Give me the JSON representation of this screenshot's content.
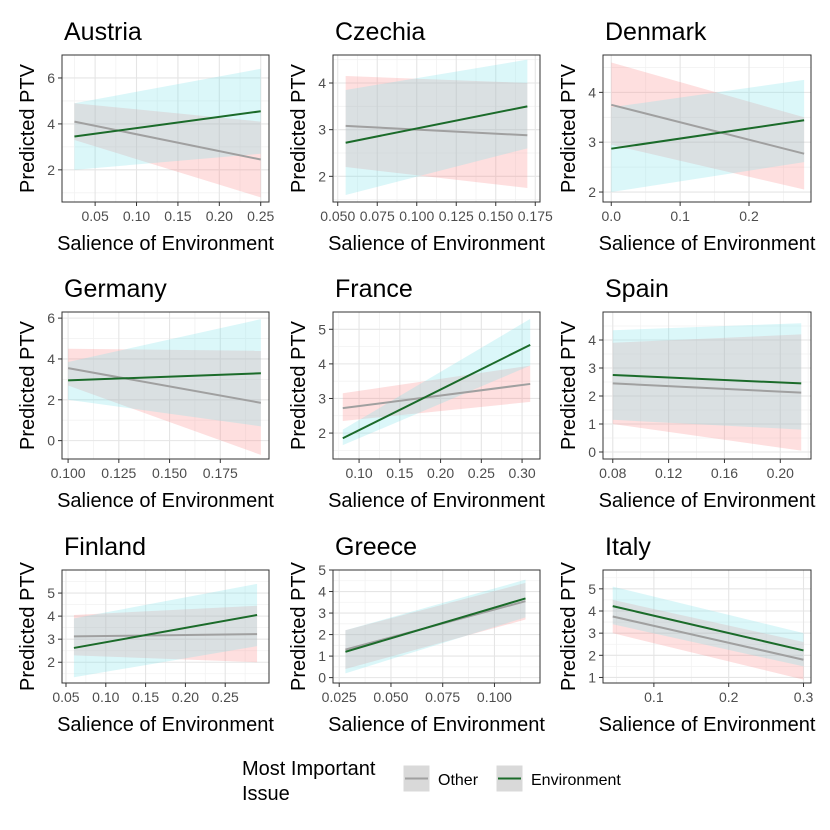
{
  "legend": {
    "title_lines": [
      "Most Important",
      "Issue"
    ],
    "items": [
      {
        "label": "Other",
        "line_color": "#a0a0a0",
        "fill_color": "#c8c8c8"
      },
      {
        "label": "Environment",
        "line_color": "#1b6b2a",
        "fill_color": "#bfd9c4"
      }
    ]
  },
  "colors": {
    "other_line": "#a0a0a0",
    "environment_line": "#1b6b2a",
    "other_ribbon": "#fb8b8b",
    "environment_ribbon": "#7fe3e8",
    "panel_border": "#333333",
    "grid_major": "#e5e5e5",
    "grid_minor": "#f2f2f2"
  },
  "chart_data": [
    {
      "type": "line",
      "title": "Austria",
      "xlabel": "Salience of Environment",
      "ylabel": "Predicted PTV",
      "xlim": [
        0.01,
        0.26
      ],
      "ylim": [
        0.6,
        7.0
      ],
      "xticks": [
        0.05,
        0.1,
        0.15,
        0.2,
        0.25
      ],
      "xtick_labels": [
        "0.05",
        "0.10",
        "0.15",
        "0.20",
        "0.25"
      ],
      "yticks": [
        2,
        4,
        6
      ],
      "ytick_labels": [
        "2",
        "4",
        "6"
      ],
      "series": [
        {
          "name": "Other",
          "x": [
            0.025,
            0.25
          ],
          "y": [
            4.1,
            2.45
          ],
          "lower": [
            3.3,
            0.8
          ],
          "upper": [
            4.9,
            4.1
          ]
        },
        {
          "name": "Environment",
          "x": [
            0.025,
            0.25
          ],
          "y": [
            3.45,
            4.55
          ],
          "lower": [
            2.0,
            2.7
          ],
          "upper": [
            4.9,
            6.4
          ]
        }
      ]
    },
    {
      "type": "line",
      "title": "Czechia",
      "xlabel": "Salience of Environment",
      "ylabel": "Predicted PTV",
      "xlim": [
        0.047,
        0.178
      ],
      "ylim": [
        1.45,
        4.6
      ],
      "xticks": [
        0.05,
        0.075,
        0.1,
        0.125,
        0.15,
        0.175
      ],
      "xtick_labels": [
        "0.050",
        "0.075",
        "0.100",
        "0.125",
        "0.150",
        "0.175"
      ],
      "yticks": [
        2,
        3,
        4
      ],
      "ytick_labels": [
        "2",
        "3",
        "4"
      ],
      "series": [
        {
          "name": "Other",
          "x": [
            0.055,
            0.17
          ],
          "y": [
            3.08,
            2.88
          ],
          "lower": [
            2.2,
            1.75
          ],
          "upper": [
            4.15,
            4.0
          ]
        },
        {
          "name": "Environment",
          "x": [
            0.055,
            0.17
          ],
          "y": [
            2.72,
            3.5
          ],
          "lower": [
            1.6,
            2.6
          ],
          "upper": [
            3.85,
            4.5
          ]
        }
      ]
    },
    {
      "type": "line",
      "title": "Denmark",
      "xlabel": "Salience of Environment",
      "ylabel": "Predicted PTV",
      "xlim": [
        -0.012,
        0.29
      ],
      "ylim": [
        1.8,
        4.75
      ],
      "xticks": [
        0.0,
        0.1,
        0.2
      ],
      "xtick_labels": [
        "0.0",
        "0.1",
        "0.2"
      ],
      "yticks": [
        2,
        3,
        4
      ],
      "ytick_labels": [
        "2",
        "3",
        "4"
      ],
      "series": [
        {
          "name": "Other",
          "x": [
            0.0,
            0.28
          ],
          "y": [
            3.75,
            2.77
          ],
          "lower": [
            2.95,
            2.05
          ],
          "upper": [
            4.6,
            3.5
          ]
        },
        {
          "name": "Environment",
          "x": [
            0.0,
            0.28
          ],
          "y": [
            2.87,
            3.44
          ],
          "lower": [
            2.0,
            2.6
          ],
          "upper": [
            3.7,
            4.25
          ]
        }
      ]
    },
    {
      "type": "line",
      "title": "Germany",
      "xlabel": "Salience of Environment",
      "ylabel": "Predicted PTV",
      "xlim": [
        0.097,
        0.199
      ],
      "ylim": [
        -0.9,
        6.3
      ],
      "xticks": [
        0.1,
        0.125,
        0.15,
        0.175
      ],
      "xtick_labels": [
        "0.100",
        "0.125",
        "0.150",
        "0.175"
      ],
      "yticks": [
        0,
        2,
        4,
        6
      ],
      "ytick_labels": [
        "0",
        "2",
        "4",
        "6"
      ],
      "series": [
        {
          "name": "Other",
          "x": [
            0.1,
            0.195
          ],
          "y": [
            3.55,
            1.85
          ],
          "lower": [
            2.7,
            -0.7
          ],
          "upper": [
            4.5,
            4.4
          ]
        },
        {
          "name": "Environment",
          "x": [
            0.1,
            0.195
          ],
          "y": [
            2.95,
            3.3
          ],
          "lower": [
            2.0,
            0.7
          ],
          "upper": [
            3.85,
            5.95
          ]
        }
      ]
    },
    {
      "type": "line",
      "title": "France",
      "xlabel": "Salience of Environment",
      "ylabel": "Predicted PTV",
      "xlim": [
        0.068,
        0.322
      ],
      "ylim": [
        1.25,
        5.5
      ],
      "xticks": [
        0.1,
        0.15,
        0.2,
        0.25,
        0.3
      ],
      "xtick_labels": [
        "0.10",
        "0.15",
        "0.20",
        "0.25",
        "0.30"
      ],
      "yticks": [
        2,
        3,
        4,
        5
      ],
      "ytick_labels": [
        "2",
        "3",
        "4",
        "5"
      ],
      "series": [
        {
          "name": "Other",
          "x": [
            0.08,
            0.31
          ],
          "y": [
            2.72,
            3.42
          ],
          "lower": [
            2.35,
            2.9
          ],
          "upper": [
            3.15,
            3.95
          ]
        },
        {
          "name": "Environment",
          "x": [
            0.08,
            0.31
          ],
          "y": [
            1.85,
            4.55
          ],
          "lower": [
            1.65,
            3.95
          ],
          "upper": [
            2.1,
            5.3
          ]
        }
      ]
    },
    {
      "type": "line",
      "title": "Spain",
      "xlabel": "Salience of Environment",
      "ylabel": "Predicted PTV",
      "xlim": [
        0.073,
        0.222
      ],
      "ylim": [
        -0.25,
        5.0
      ],
      "xticks": [
        0.08,
        0.12,
        0.16,
        0.2
      ],
      "xtick_labels": [
        "0.08",
        "0.12",
        "0.16",
        "0.20"
      ],
      "yticks": [
        0,
        1,
        2,
        3,
        4
      ],
      "ytick_labels": [
        "0",
        "1",
        "2",
        "3",
        "4"
      ],
      "series": [
        {
          "name": "Other",
          "x": [
            0.08,
            0.215
          ],
          "y": [
            2.45,
            2.12
          ],
          "lower": [
            1.0,
            0.05
          ],
          "upper": [
            3.9,
            4.2
          ]
        },
        {
          "name": "Environment",
          "x": [
            0.08,
            0.215
          ],
          "y": [
            2.75,
            2.45
          ],
          "lower": [
            1.15,
            0.8
          ],
          "upper": [
            4.35,
            4.6
          ]
        }
      ]
    },
    {
      "type": "line",
      "title": "Finland",
      "xlabel": "Salience of Environment",
      "ylabel": "Predicted PTV",
      "xlim": [
        0.045,
        0.305
      ],
      "ylim": [
        1.1,
        6.0
      ],
      "xticks": [
        0.05,
        0.1,
        0.15,
        0.2,
        0.25
      ],
      "xtick_labels": [
        "0.05",
        "0.10",
        "0.15",
        "0.20",
        "0.25"
      ],
      "yticks": [
        2,
        3,
        4,
        5
      ],
      "ytick_labels": [
        "2",
        "3",
        "4",
        "5"
      ],
      "series": [
        {
          "name": "Other",
          "x": [
            0.06,
            0.29
          ],
          "y": [
            3.12,
            3.22
          ],
          "lower": [
            2.3,
            2.0
          ],
          "upper": [
            4.05,
            4.45
          ]
        },
        {
          "name": "Environment",
          "x": [
            0.06,
            0.29
          ],
          "y": [
            2.62,
            4.05
          ],
          "lower": [
            1.35,
            2.7
          ],
          "upper": [
            3.9,
            5.4
          ]
        }
      ]
    },
    {
      "type": "line",
      "title": "Greece",
      "xlabel": "Salience of Environment",
      "ylabel": "Predicted PTV",
      "xlim": [
        0.022,
        0.122
      ],
      "ylim": [
        -0.25,
        5.0
      ],
      "xticks": [
        0.025,
        0.05,
        0.075,
        0.1
      ],
      "xtick_labels": [
        "0.025",
        "0.050",
        "0.075",
        "0.100"
      ],
      "yticks": [
        0,
        1,
        2,
        3,
        4,
        5
      ],
      "ytick_labels": [
        "0",
        "1",
        "2",
        "3",
        "4",
        "5"
      ],
      "series": [
        {
          "name": "Other",
          "x": [
            0.028,
            0.115
          ],
          "y": [
            1.3,
            3.55
          ],
          "lower": [
            0.4,
            2.7
          ],
          "upper": [
            2.2,
            4.4
          ]
        },
        {
          "name": "Environment",
          "x": [
            0.028,
            0.115
          ],
          "y": [
            1.2,
            3.68
          ],
          "lower": [
            0.2,
            2.8
          ],
          "upper": [
            2.2,
            4.55
          ]
        }
      ]
    },
    {
      "type": "line",
      "title": "Italy",
      "xlabel": "Salience of Environment",
      "ylabel": "Predicted PTV",
      "xlim": [
        0.032,
        0.31
      ],
      "ylim": [
        0.75,
        5.85
      ],
      "xticks": [
        0.1,
        0.2,
        0.3
      ],
      "xtick_labels": [
        "0.1",
        "0.2",
        "0.3"
      ],
      "yticks": [
        1,
        2,
        3,
        4,
        5
      ],
      "ytick_labels": [
        "1",
        "2",
        "3",
        "4",
        "5"
      ],
      "series": [
        {
          "name": "Other",
          "x": [
            0.045,
            0.3
          ],
          "y": [
            3.75,
            1.8
          ],
          "lower": [
            3.0,
            0.9
          ],
          "upper": [
            4.5,
            2.6
          ]
        },
        {
          "name": "Environment",
          "x": [
            0.045,
            0.3
          ],
          "y": [
            4.22,
            2.22
          ],
          "lower": [
            3.4,
            1.5
          ],
          "upper": [
            5.1,
            3.0
          ]
        }
      ]
    }
  ]
}
